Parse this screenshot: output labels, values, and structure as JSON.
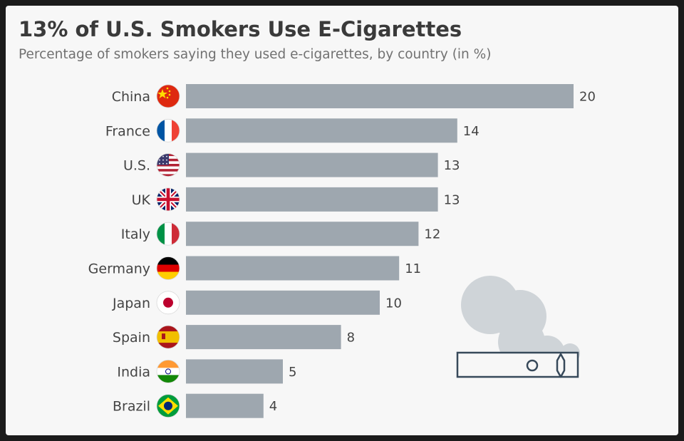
{
  "header": {
    "title": "13% of U.S. Smokers Use E-Cigarettes",
    "subtitle": "Percentage of smokers saying they used e-cigarettes, by country (in %)"
  },
  "chart_data": {
    "type": "bar",
    "orientation": "horizontal",
    "categories": [
      "China",
      "France",
      "U.S.",
      "UK",
      "Italy",
      "Germany",
      "Japan",
      "Spain",
      "India",
      "Brazil"
    ],
    "values": [
      20,
      14,
      13,
      13,
      12,
      11,
      10,
      8,
      5,
      4
    ],
    "title": "13% of U.S. Smokers Use E-Cigarettes",
    "subtitle": "Percentage of smokers saying they used e-cigarettes, by country (in %)",
    "xlabel": "",
    "ylabel": "",
    "xlim": [
      0,
      20
    ],
    "grid": false,
    "legend": "none",
    "bar_color": "#9ea7af",
    "flags": [
      "flag-china-icon",
      "flag-france-icon",
      "flag-us-icon",
      "flag-uk-icon",
      "flag-italy-icon",
      "flag-germany-icon",
      "flag-japan-icon",
      "flag-spain-icon",
      "flag-india-icon",
      "flag-brazil-icon"
    ]
  },
  "decoration": {
    "icon": "e-cigarette-icon",
    "smoke_color": "#cfd4d8",
    "outline_color": "#37495a"
  }
}
